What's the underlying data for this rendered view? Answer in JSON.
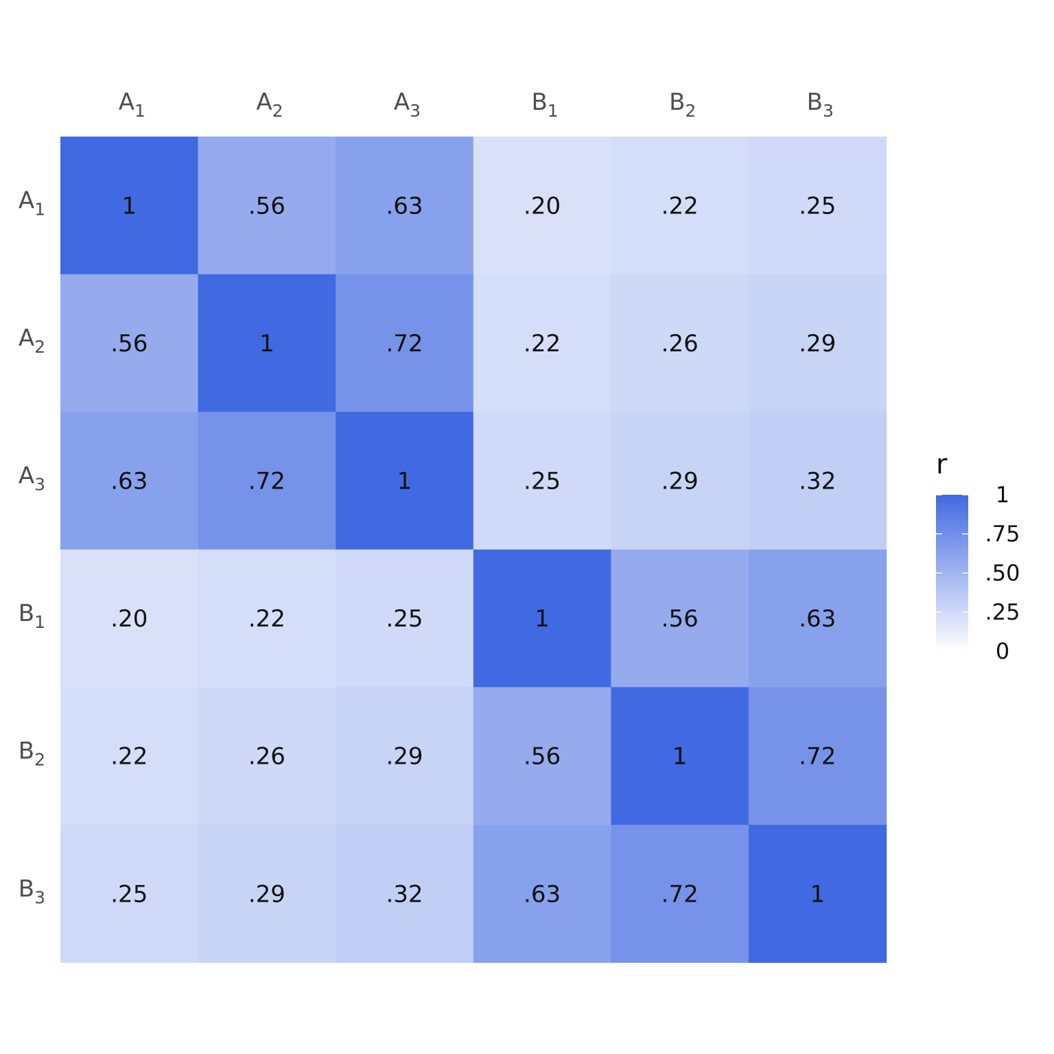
{
  "chart_data": {
    "type": "heatmap",
    "x_categories": [
      {
        "base": "A",
        "sub": "1"
      },
      {
        "base": "A",
        "sub": "2"
      },
      {
        "base": "A",
        "sub": "3"
      },
      {
        "base": "B",
        "sub": "1"
      },
      {
        "base": "B",
        "sub": "2"
      },
      {
        "base": "B",
        "sub": "3"
      }
    ],
    "y_categories": [
      {
        "base": "A",
        "sub": "1"
      },
      {
        "base": "A",
        "sub": "2"
      },
      {
        "base": "A",
        "sub": "3"
      },
      {
        "base": "B",
        "sub": "1"
      },
      {
        "base": "B",
        "sub": "2"
      },
      {
        "base": "B",
        "sub": "3"
      }
    ],
    "values": [
      [
        1,
        0.56,
        0.63,
        0.2,
        0.22,
        0.25
      ],
      [
        0.56,
        1,
        0.72,
        0.22,
        0.26,
        0.29
      ],
      [
        0.63,
        0.72,
        1,
        0.25,
        0.29,
        0.32
      ],
      [
        0.2,
        0.22,
        0.25,
        1,
        0.56,
        0.63
      ],
      [
        0.22,
        0.26,
        0.29,
        0.56,
        1,
        0.72
      ],
      [
        0.25,
        0.29,
        0.32,
        0.63,
        0.72,
        1
      ]
    ],
    "cell_labels": [
      [
        "1",
        ".56",
        ".63",
        ".20",
        ".22",
        ".25"
      ],
      [
        ".56",
        "1",
        ".72",
        ".22",
        ".26",
        ".29"
      ],
      [
        ".63",
        ".72",
        "1",
        ".25",
        ".29",
        ".32"
      ],
      [
        ".20",
        ".22",
        ".25",
        "1",
        ".56",
        ".63"
      ],
      [
        ".22",
        ".26",
        ".29",
        ".56",
        "1",
        ".72"
      ],
      [
        ".25",
        ".29",
        ".32",
        ".63",
        ".72",
        "1"
      ]
    ],
    "x_axis_position": "top",
    "legend": {
      "title": "r",
      "position": "right",
      "range": [
        0,
        1
      ],
      "ticks": [
        0,
        0.25,
        0.5,
        0.75,
        1
      ],
      "tick_labels": [
        "0",
        ".25",
        ".50",
        ".75",
        "1"
      ]
    },
    "color_scale": {
      "low": "#ffffff",
      "high": "#4169e1"
    },
    "grid": false
  }
}
